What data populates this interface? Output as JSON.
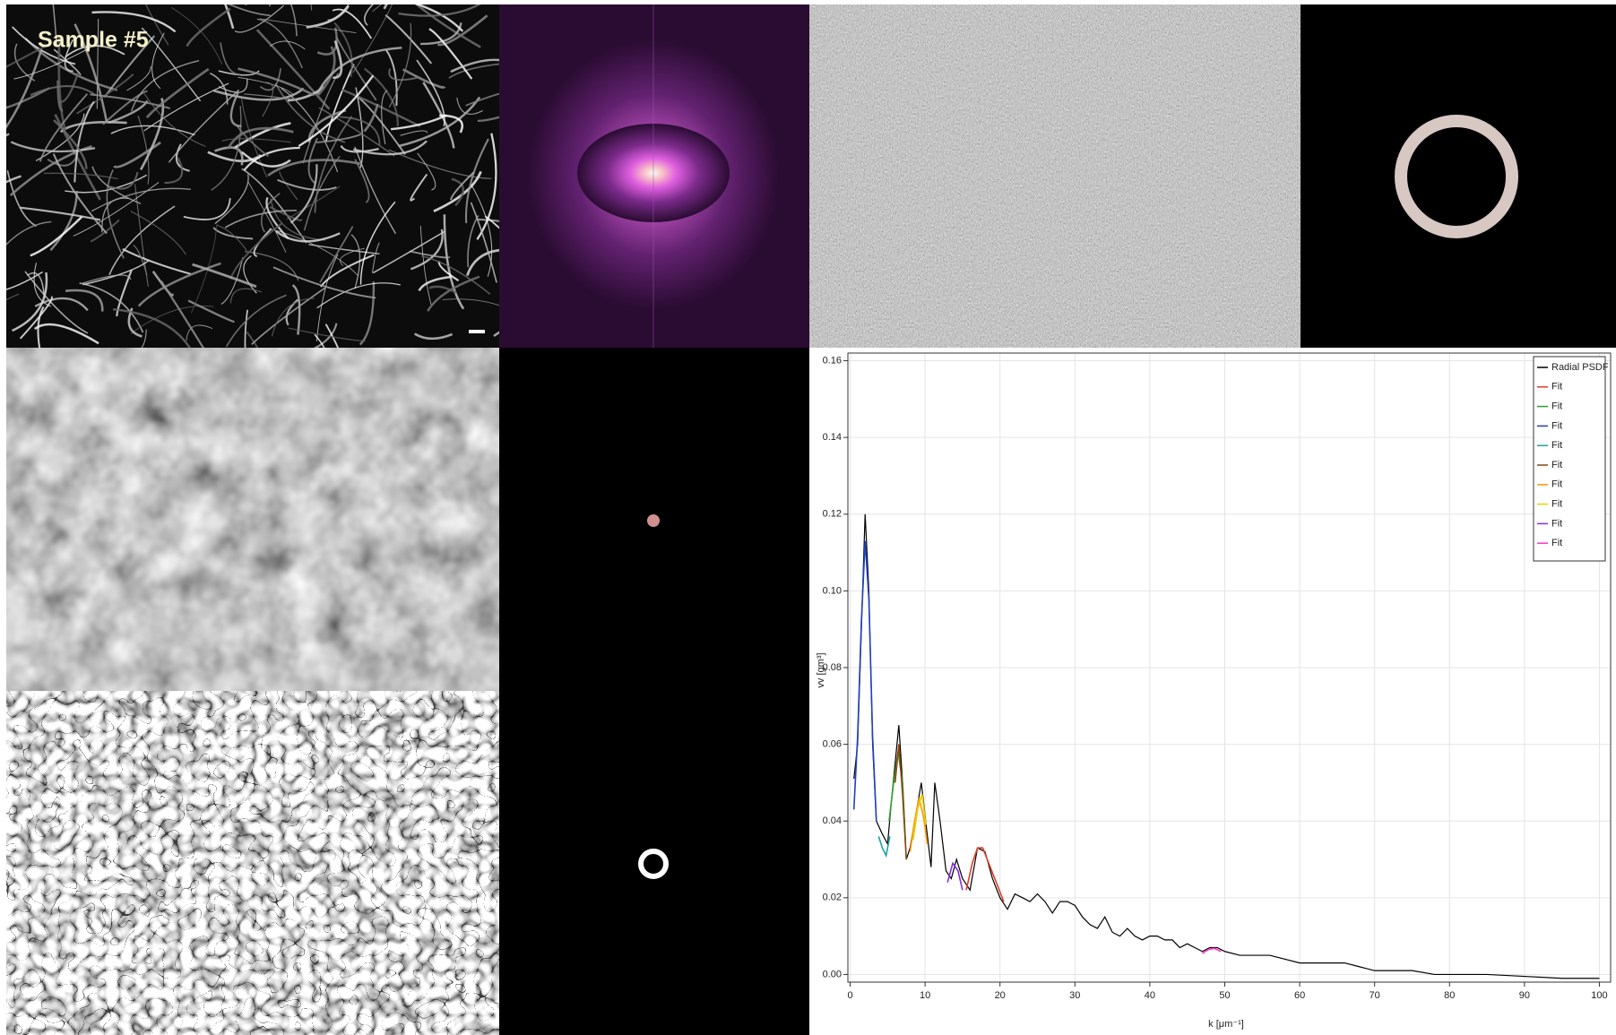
{
  "figure_label": "Sample #5",
  "chart_data": {
    "type": "line",
    "x_label": "k [μm⁻¹]",
    "y_label": "vv [gm³]",
    "xlim": [
      -0.3,
      101.5
    ],
    "ylim": [
      -0.002,
      0.162
    ],
    "xticks": [
      0,
      10,
      20,
      30,
      40,
      50,
      60,
      70,
      80,
      90,
      100
    ],
    "yticks": [
      {
        "value": 0,
        "label": "0.00"
      },
      0.02,
      0.04,
      0.06,
      0.08,
      {
        "value": 0.1,
        "label": "0.10"
      },
      0.12,
      0.14,
      0.16
    ],
    "grid": true,
    "legend": "upper right",
    "series": [
      {
        "name": "Radial PSDF",
        "color": "#000000",
        "x": [
          0.5,
          1,
          1.5,
          2,
          2.5,
          3,
          3.5,
          4.2,
          5,
          5.5,
          6,
          6.5,
          7,
          7.5,
          8,
          8.8,
          9.5,
          10.2,
          10.8,
          11.3,
          12,
          12.8,
          13.5,
          14.2,
          15,
          16,
          17,
          18,
          19,
          20,
          21,
          22,
          23,
          24,
          25,
          26,
          27,
          28,
          29,
          30,
          31,
          32,
          33,
          34,
          35,
          36,
          37,
          38,
          39,
          40,
          41,
          42,
          43,
          44,
          45,
          46,
          47,
          48,
          49,
          50,
          52,
          54,
          56,
          58,
          60,
          62,
          64,
          66,
          68,
          70,
          72,
          75,
          78,
          80,
          85,
          90,
          95,
          100
        ],
        "values": [
          0.051,
          0.06,
          0.09,
          0.12,
          0.1,
          0.06,
          0.04,
          0.037,
          0.034,
          0.045,
          0.055,
          0.065,
          0.05,
          0.03,
          0.033,
          0.042,
          0.05,
          0.038,
          0.028,
          0.05,
          0.04,
          0.027,
          0.025,
          0.03,
          0.025,
          0.022,
          0.033,
          0.032,
          0.025,
          0.02,
          0.017,
          0.021,
          0.02,
          0.019,
          0.021,
          0.019,
          0.016,
          0.019,
          0.019,
          0.018,
          0.015,
          0.013,
          0.012,
          0.015,
          0.011,
          0.01,
          0.012,
          0.01,
          0.009,
          0.01,
          0.01,
          0.009,
          0.009,
          0.007,
          0.008,
          0.007,
          0.006,
          0.007,
          0.007,
          0.006,
          0.005,
          0.005,
          0.005,
          0.004,
          0.003,
          0.003,
          0.003,
          0.003,
          0.002,
          0.001,
          0.001,
          0.001,
          0,
          0,
          0,
          -0.0005,
          -0.001,
          -0.001
        ]
      },
      {
        "name": "Fit",
        "color": "#e03c28",
        "x": [
          15.5,
          16.3,
          17,
          17.7,
          18.5,
          19.5,
          20.5
        ],
        "values": [
          0.022,
          0.029,
          0.033,
          0.033,
          0.029,
          0.024,
          0.019
        ]
      },
      {
        "name": "Fit",
        "color": "#2ca02c",
        "x": [
          5.2,
          5.8,
          6.4,
          7,
          7.4
        ],
        "values": [
          0.04,
          0.05,
          0.058,
          0.05,
          0.034
        ]
      },
      {
        "name": "Fit",
        "color": "#2040c0",
        "x": [
          0.5,
          1,
          1.5,
          2,
          2.5,
          3,
          3.5
        ],
        "values": [
          0.043,
          0.062,
          0.092,
          0.113,
          0.098,
          0.062,
          0.04
        ]
      },
      {
        "name": "Fit",
        "color": "#20a0a0",
        "x": [
          3.8,
          4.3,
          4.8,
          5.3
        ],
        "values": [
          0.036,
          0.033,
          0.031,
          0.036
        ]
      },
      {
        "name": "Fit",
        "color": "#8b4513",
        "x": [
          6,
          6.5,
          7,
          7.5
        ],
        "values": [
          0.05,
          0.06,
          0.047,
          0.03
        ]
      },
      {
        "name": "Fit",
        "color": "#ff9900",
        "x": [
          8,
          8.6,
          9.2,
          9.8,
          10.3
        ],
        "values": [
          0.032,
          0.04,
          0.046,
          0.041,
          0.034
        ]
      },
      {
        "name": "Fit",
        "color": "#e6d000",
        "x": [
          8.4,
          9,
          9.6,
          10.1
        ],
        "values": [
          0.035,
          0.043,
          0.047,
          0.039
        ]
      },
      {
        "name": "Fit",
        "color": "#8a2be2",
        "x": [
          13,
          13.7,
          14.4,
          15
        ],
        "values": [
          0.024,
          0.029,
          0.027,
          0.022
        ]
      },
      {
        "name": "Fit",
        "color": "#ff33cc",
        "x": [
          47,
          47.8,
          48.6,
          49.5
        ],
        "values": [
          0.0055,
          0.0065,
          0.0068,
          0.006
        ]
      }
    ]
  }
}
